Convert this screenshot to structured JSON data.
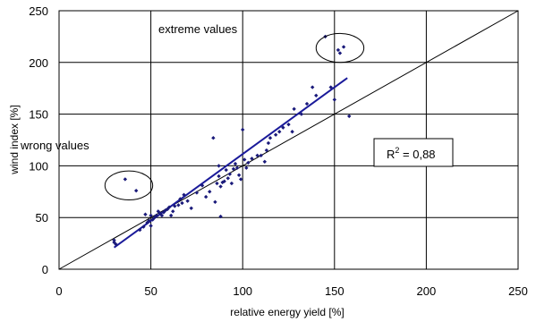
{
  "chart_data": {
    "type": "scatter",
    "title": "",
    "xlabel": "relative energy yield [%]",
    "ylabel": "wind index [%]",
    "xlim": [
      0,
      250
    ],
    "ylim": [
      0,
      250
    ],
    "x_ticks": [
      "0",
      "50",
      "100",
      "150",
      "200",
      "250"
    ],
    "y_ticks": [
      "0",
      "50",
      "100",
      "150",
      "200",
      "250"
    ],
    "grid": true,
    "colors": {
      "points": "#1a1a7a",
      "fit_line": "#1a1a9a",
      "diagonal": "#000000"
    },
    "points": [
      [
        30,
        26
      ],
      [
        30,
        28
      ],
      [
        31,
        24
      ],
      [
        36,
        87
      ],
      [
        42,
        76
      ],
      [
        44,
        38
      ],
      [
        46,
        41
      ],
      [
        47,
        53
      ],
      [
        48,
        45
      ],
      [
        49,
        47
      ],
      [
        50,
        42
      ],
      [
        50,
        52
      ],
      [
        51,
        48
      ],
      [
        52,
        50
      ],
      [
        53,
        52
      ],
      [
        54,
        56
      ],
      [
        55,
        54
      ],
      [
        56,
        52
      ],
      [
        57,
        55
      ],
      [
        58,
        57
      ],
      [
        59,
        58
      ],
      [
        60,
        60
      ],
      [
        61,
        52
      ],
      [
        62,
        56
      ],
      [
        63,
        61
      ],
      [
        65,
        62
      ],
      [
        66,
        68
      ],
      [
        67,
        64
      ],
      [
        68,
        72
      ],
      [
        70,
        66
      ],
      [
        72,
        59
      ],
      [
        75,
        74
      ],
      [
        78,
        81
      ],
      [
        80,
        70
      ],
      [
        82,
        75
      ],
      [
        84,
        127
      ],
      [
        85,
        65
      ],
      [
        86,
        83
      ],
      [
        87,
        90
      ],
      [
        87,
        100
      ],
      [
        88,
        51
      ],
      [
        88,
        80
      ],
      [
        89,
        84
      ],
      [
        90,
        85
      ],
      [
        91,
        96
      ],
      [
        92,
        88
      ],
      [
        93,
        92
      ],
      [
        94,
        83
      ],
      [
        95,
        97
      ],
      [
        96,
        102
      ],
      [
        97,
        98
      ],
      [
        98,
        91
      ],
      [
        99,
        87
      ],
      [
        100,
        135
      ],
      [
        101,
        106
      ],
      [
        102,
        98
      ],
      [
        103,
        103
      ],
      [
        105,
        107
      ],
      [
        108,
        110
      ],
      [
        110,
        110
      ],
      [
        112,
        104
      ],
      [
        113,
        115
      ],
      [
        114,
        122
      ],
      [
        115,
        127
      ],
      [
        118,
        130
      ],
      [
        120,
        133
      ],
      [
        122,
        137
      ],
      [
        125,
        140
      ],
      [
        127,
        133
      ],
      [
        128,
        155
      ],
      [
        132,
        150
      ],
      [
        135,
        160
      ],
      [
        138,
        176
      ],
      [
        140,
        168
      ],
      [
        145,
        225
      ],
      [
        148,
        176
      ],
      [
        150,
        164
      ],
      [
        152,
        212
      ],
      [
        153,
        209
      ],
      [
        155,
        215
      ],
      [
        158,
        148
      ]
    ],
    "fit_line": {
      "x": [
        30,
        157
      ],
      "y": [
        21,
        185
      ]
    },
    "diagonal": {
      "x": [
        0,
        250
      ],
      "y": [
        0,
        250
      ]
    },
    "annotations": {
      "extreme": "extreme values",
      "wrong": "wrong  values",
      "r2_label": "R",
      "r2_sup": "2",
      "r2_value": " = 0,88"
    },
    "ellipses": [
      {
        "cx": 38,
        "cy": 81,
        "rx": 13,
        "ry": 14
      },
      {
        "cx": 153,
        "cy": 214,
        "rx": 13,
        "ry": 14
      }
    ]
  }
}
